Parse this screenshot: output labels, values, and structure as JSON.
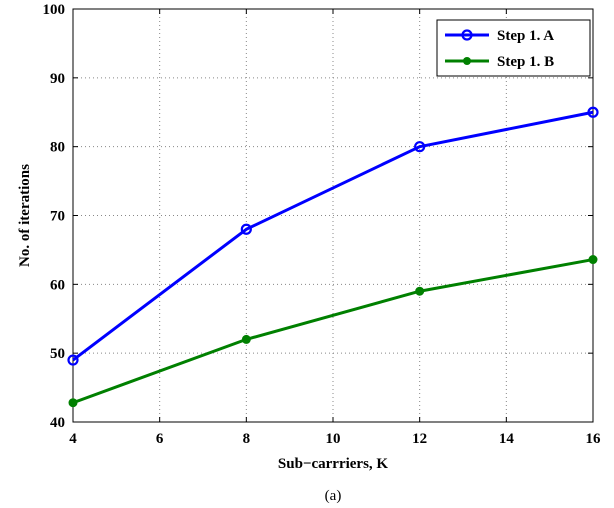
{
  "chart_data": {
    "type": "line",
    "xlabel": "Sub−carrriers, K",
    "ylabel": "No. of iterations",
    "caption": "(a)",
    "xlim": [
      4,
      16
    ],
    "ylim": [
      40,
      100
    ],
    "xticks": [
      "4",
      "6",
      "8",
      "10",
      "12",
      "14",
      "16"
    ],
    "yticks": [
      "40",
      "50",
      "60",
      "70",
      "80",
      "90",
      "100"
    ],
    "grid": true,
    "legend_position": "top-right",
    "x": [
      4,
      8,
      12,
      16
    ],
    "series": [
      {
        "name": "Step 1. A",
        "values": [
          49,
          68,
          80,
          85
        ],
        "color": "#0000ff",
        "marker": "circle"
      },
      {
        "name": "Step 1. B",
        "values": [
          42.8,
          52,
          59,
          63.6
        ],
        "color": "#008000",
        "marker": "dot"
      }
    ]
  }
}
